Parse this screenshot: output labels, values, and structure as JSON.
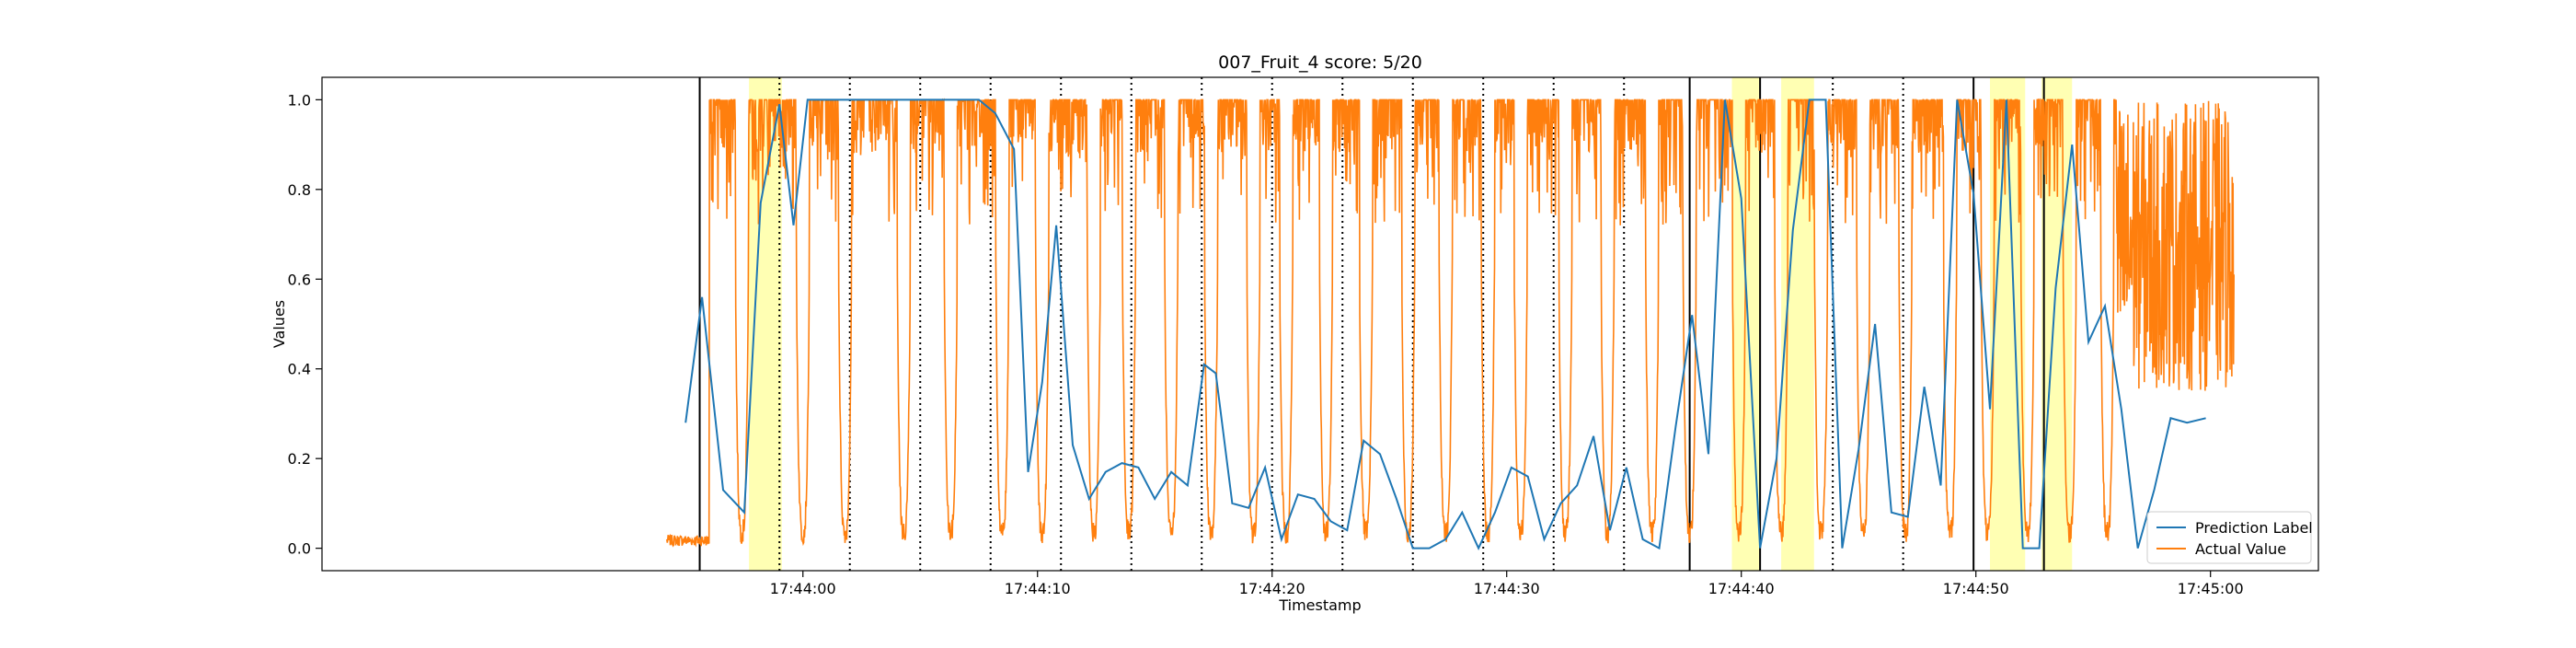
{
  "chart_data": {
    "type": "line",
    "title": "007_Fruit_4 score: 5/20",
    "xlabel": "Timestamp",
    "ylabel": "Values",
    "xlim": [
      "17:43:39.5",
      "17:45:04.6"
    ],
    "ylim": [
      -0.05,
      1.05
    ],
    "x_ticks": [
      "17:44:00",
      "17:44:10",
      "17:44:20",
      "17:44:30",
      "17:44:40",
      "17:44:50",
      "17:45:00"
    ],
    "y_ticks": [
      "0.0",
      "0.2",
      "0.4",
      "0.6",
      "0.8",
      "1.0"
    ],
    "grid": false,
    "legend": {
      "placement": "lower right",
      "entries": [
        "Prediction Label",
        "Actual Value"
      ]
    },
    "colors": {
      "prediction": "#1f77b4",
      "actual": "#ff7f0e",
      "highlight": "#ffff99",
      "boundary": "#000000"
    },
    "highlight_regions": [
      [
        "17:43:57.7",
        "17:43:59.1"
      ],
      [
        "17:44:39.6",
        "17:44:40.8"
      ],
      [
        "17:44:41.7",
        "17:44:43.1"
      ],
      [
        "17:44:50.6",
        "17:44:52.1"
      ],
      [
        "17:44:52.8",
        "17:44:54.1"
      ]
    ],
    "solid_vlines": [
      "17:43:55.6",
      "17:44:37.8",
      "17:44:40.8",
      "17:44:49.9",
      "17:44:52.9"
    ],
    "dotted_vlines": [
      "17:43:59.0",
      "17:44:02.0",
      "17:44:05.0",
      "17:44:08.0",
      "17:44:11.0",
      "17:44:14.0",
      "17:44:17.0",
      "17:44:20.0",
      "17:44:23.0",
      "17:44:26.0",
      "17:44:29.0",
      "17:44:32.0",
      "17:44:35.0",
      "17:44:43.9",
      "17:44:46.9"
    ],
    "series": [
      {
        "name": "Prediction Label",
        "type": "line",
        "x": [
          "17:43:55.0",
          "17:43:55.7",
          "17:43:56.6",
          "17:43:57.5",
          "17:43:58.2",
          "17:43:59.0",
          "17:43:59.6",
          "17:44:00.2",
          "17:44:00.7",
          "17:44:01.5",
          "17:44:02.5",
          "17:44:03.5",
          "17:44:04.5",
          "17:44:05.5",
          "17:44:06.5",
          "17:44:07.5",
          "17:44:08.2",
          "17:44:09.0",
          "17:44:09.6",
          "17:44:10.2",
          "17:44:10.8",
          "17:44:11.5",
          "17:44:12.2",
          "17:44:12.9",
          "17:44:13.6",
          "17:44:14.3",
          "17:44:15.0",
          "17:44:15.7",
          "17:44:16.4",
          "17:44:17.1",
          "17:44:17.6",
          "17:44:18.3",
          "17:44:19.0",
          "17:44:19.7",
          "17:44:20.4",
          "17:44:21.1",
          "17:44:21.8",
          "17:44:22.5",
          "17:44:23.2",
          "17:44:23.9",
          "17:44:24.6",
          "17:44:25.3",
          "17:44:26.0",
          "17:44:26.7",
          "17:44:27.4",
          "17:44:28.1",
          "17:44:28.8",
          "17:44:29.5",
          "17:44:30.2",
          "17:44:30.9",
          "17:44:31.6",
          "17:44:32.3",
          "17:44:33.0",
          "17:44:33.7",
          "17:44:34.4",
          "17:44:35.1",
          "17:44:35.8",
          "17:44:36.5",
          "17:44:37.2",
          "17:44:37.9",
          "17:44:38.6",
          "17:44:39.3",
          "17:44:40.0",
          "17:44:40.8",
          "17:44:41.5",
          "17:44:42.2",
          "17:44:42.9",
          "17:44:43.6",
          "17:44:44.3",
          "17:44:45.0",
          "17:44:45.7",
          "17:44:46.4",
          "17:44:47.1",
          "17:44:47.8",
          "17:44:48.5",
          "17:44:49.2",
          "17:44:49.9",
          "17:44:50.6",
          "17:44:51.3",
          "17:44:52.0",
          "17:44:52.7",
          "17:44:53.4",
          "17:44:54.1",
          "17:44:54.8",
          "17:44:55.5",
          "17:44:56.2",
          "17:44:56.9",
          "17:44:57.6",
          "17:44:58.3",
          "17:44:59.0",
          "17:44:59.8"
        ],
        "y": [
          0.28,
          0.56,
          0.13,
          0.08,
          0.77,
          0.99,
          0.72,
          1.0,
          1.0,
          1.0,
          1.0,
          1.0,
          1.0,
          1.0,
          1.0,
          1.0,
          0.97,
          0.89,
          0.17,
          0.37,
          0.72,
          0.23,
          0.11,
          0.17,
          0.19,
          0.18,
          0.11,
          0.17,
          0.14,
          0.41,
          0.39,
          0.1,
          0.09,
          0.18,
          0.02,
          0.12,
          0.11,
          0.06,
          0.04,
          0.24,
          0.21,
          0.11,
          0.0,
          0.0,
          0.02,
          0.08,
          0.0,
          0.08,
          0.18,
          0.16,
          0.02,
          0.1,
          0.14,
          0.25,
          0.04,
          0.18,
          0.02,
          0.0,
          0.27,
          0.52,
          0.21,
          1.0,
          0.78,
          0.0,
          0.2,
          0.71,
          1.0,
          1.0,
          0.0,
          0.22,
          0.5,
          0.08,
          0.07,
          0.36,
          0.14,
          1.0,
          0.79,
          0.31,
          1.0,
          0.0,
          0.0,
          0.58,
          0.9,
          0.46,
          0.54,
          0.31,
          0.0,
          0.13,
          0.29,
          0.28,
          0.29
        ]
      },
      {
        "name": "Actual Value",
        "type": "line",
        "x_range": [
          "17:43:54.2",
          "17:45:01.0"
        ],
        "pattern": "periodic dips from ~1.0 to ~0.02 roughly every 1.5 s, with dense high-frequency noise between 0.85 and 1.0; small cluster near 0.01 before 17:43:56; strongly oscillating between 0.35 and 1.0 after 17:44:56",
        "dip_times": [
          "17:43:57.4",
          "17:44:00.0",
          "17:44:01.8",
          "17:44:04.3",
          "17:44:06.3",
          "17:44:08.5",
          "17:44:10.2",
          "17:44:12.4",
          "17:44:13.9",
          "17:44:15.7",
          "17:44:17.4",
          "17:44:19.2",
          "17:44:20.6",
          "17:44:22.3",
          "17:44:24.0",
          "17:44:25.8",
          "17:44:27.4",
          "17:44:29.2",
          "17:44:30.6",
          "17:44:32.5",
          "17:44:34.3",
          "17:44:36.2",
          "17:44:37.8",
          "17:44:39.9",
          "17:44:41.7",
          "17:44:43.4",
          "17:44:45.2",
          "17:44:47.0",
          "17:44:48.9",
          "17:44:50.5",
          "17:44:52.2",
          "17:44:54.0",
          "17:44:55.6"
        ]
      }
    ]
  }
}
